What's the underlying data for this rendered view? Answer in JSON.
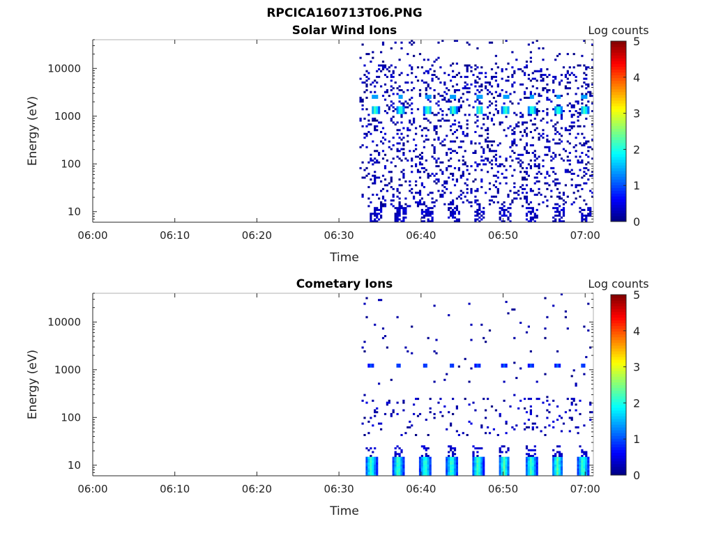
{
  "figure": {
    "title": "RPCICA160713T06.PNG"
  },
  "colorscale": {
    "label": "Log counts",
    "range": [
      0,
      5
    ],
    "ticks": [
      "0",
      "1",
      "2",
      "3",
      "4",
      "5"
    ],
    "colormap": "jet"
  },
  "chart_data": [
    {
      "type": "heatmap",
      "title": "Solar Wind Ions",
      "xlabel": "Time",
      "ylabel": "Energy (eV)",
      "x_ticks": [
        "06:00",
        "06:10",
        "06:20",
        "06:30",
        "06:40",
        "06:50",
        "07:00"
      ],
      "xlim": [
        "06:00",
        "07:01"
      ],
      "y_scale": "log",
      "y_ticks": [
        "10",
        "100",
        "1000",
        "10000"
      ],
      "ylim": [
        6,
        40000
      ],
      "data_start": "06:32.5",
      "beam_times": [
        "06:34.3",
        "06:37.4",
        "06:40.7",
        "06:43.8",
        "06:47.0",
        "06:50.2",
        "06:53.4",
        "06:56.6",
        "06:59.8"
      ],
      "beam_energy_eV": 1300,
      "beam_peak_log_counts": 2.3,
      "secondary_energy_eV": 2600,
      "background_log_counts": 0.1,
      "low_energy_log_counts": 0.3
    },
    {
      "type": "heatmap",
      "title": "Cometary Ions",
      "xlabel": "Time",
      "ylabel": "Energy (eV)",
      "x_ticks": [
        "06:00",
        "06:10",
        "06:20",
        "06:30",
        "06:40",
        "06:50",
        "07:00"
      ],
      "xlim": [
        "06:00",
        "07:01"
      ],
      "y_scale": "log",
      "y_ticks": [
        "10",
        "100",
        "1000",
        "10000"
      ],
      "ylim": [
        6,
        40000
      ],
      "data_start": "06:32.5",
      "beam_times": [
        "06:33.8",
        "06:37.1",
        "06:40.4",
        "06:43.6",
        "06:46.8",
        "06:50.0",
        "06:53.3",
        "06:56.5",
        "06:59.6"
      ],
      "beam_energy_eV": 1250,
      "beam_peak_log_counts": 1.1,
      "low_energy_log_counts": 2.2,
      "background_log_counts": 0.1
    }
  ]
}
